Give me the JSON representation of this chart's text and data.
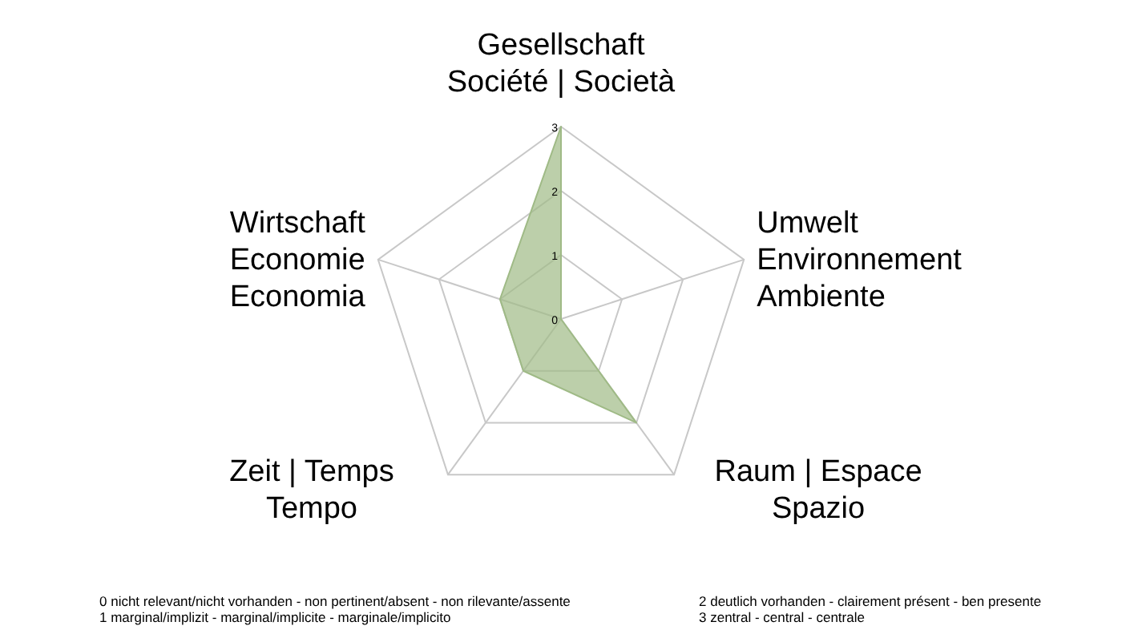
{
  "chart_data": {
    "type": "radar",
    "categories": [
      "Gesellschaft\nSociété | Società",
      "Umwelt\nEnvironnement\nAmbiente",
      "Raum | Espace\nSpazio",
      "Zeit | Temps\nTempo",
      "Wirtschaft\nEconomie\nEconomia"
    ],
    "series": [
      {
        "color": "#9fba86",
        "values": [
          3,
          0,
          2,
          1,
          1
        ]
      }
    ],
    "ylim": [
      0,
      3
    ],
    "yticks": [
      0,
      1,
      2,
      3
    ],
    "grid": true,
    "annotations": [
      "0 nicht relevant/nicht  vorhanden  - non pertinent/absent - non rilevante/assente",
      "1 marginal/implizit - marginal/implicite - marginale/implicito",
      "2 deutlich vorhanden  - clairement présent - ben presente",
      "3 zentral - central - centrale"
    ]
  }
}
